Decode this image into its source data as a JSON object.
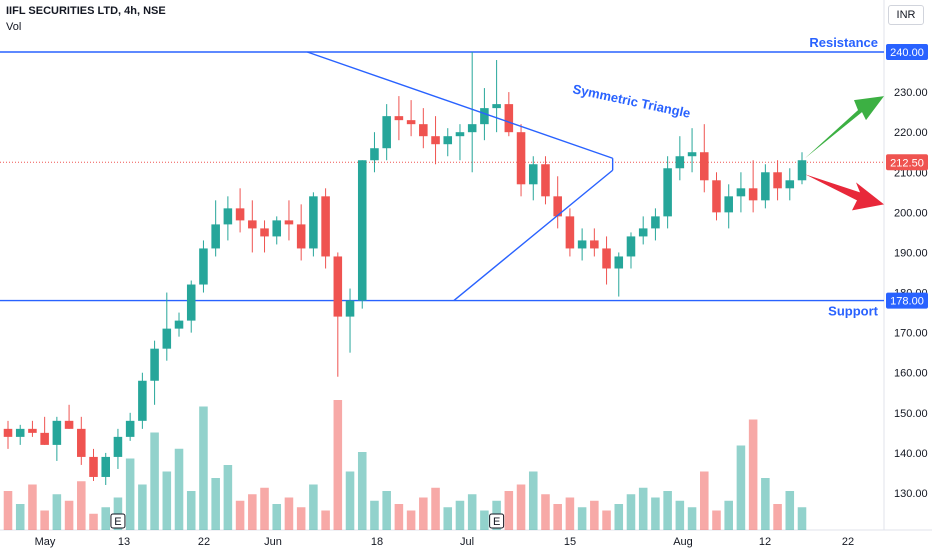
{
  "header": {
    "symbol": "IIFL SECURITIES LTD, 4h, NSE",
    "volume_label": "Vol",
    "currency": "INR"
  },
  "chart_data": {
    "type": "candlestick",
    "price_axis": {
      "ticks": [
        130,
        140,
        150,
        160,
        170,
        180,
        190,
        200,
        210,
        220,
        230
      ],
      "ylim": [
        125,
        252
      ],
      "side": "right"
    },
    "time_axis": {
      "labels": [
        "May",
        "13",
        "22",
        "Jun",
        "18",
        "Jul",
        "15",
        "Aug",
        "12",
        "22"
      ]
    },
    "current_price": {
      "value": 212.5,
      "label": "212.50"
    },
    "lines": {
      "resistance": {
        "value": 240,
        "label": "240.00",
        "text": "Resistance"
      },
      "support": {
        "value": 178,
        "label": "178.00",
        "text": "Support"
      }
    },
    "triangle": {
      "label": "Symmetric Triangle",
      "upper": [
        [
          24.5,
          240
        ],
        [
          49.5,
          213.5
        ]
      ],
      "lower": [
        [
          36.5,
          178
        ],
        [
          49.5,
          210.5
        ]
      ]
    },
    "breakout_arrows": {
      "up_target": 229,
      "down_target": 202
    },
    "earnings_markers": [
      {
        "label": "E",
        "index": 9
      },
      {
        "label": "E",
        "index": 40
      }
    ],
    "ohlc": [
      [
        146,
        148,
        141,
        144
      ],
      [
        144,
        147,
        142,
        146
      ],
      [
        146,
        148,
        144,
        145
      ],
      [
        145,
        149,
        142,
        142
      ],
      [
        142,
        149,
        138,
        148
      ],
      [
        148,
        152,
        146,
        146
      ],
      [
        146,
        149,
        137,
        139
      ],
      [
        139,
        141,
        133,
        134
      ],
      [
        134,
        140,
        132,
        139
      ],
      [
        139,
        146,
        136,
        144
      ],
      [
        144,
        150,
        143,
        148
      ],
      [
        148,
        160,
        146,
        158
      ],
      [
        158,
        168,
        152,
        166
      ],
      [
        166,
        180,
        163,
        171
      ],
      [
        171,
        175,
        169,
        173
      ],
      [
        173,
        183,
        170,
        182
      ],
      [
        182,
        193,
        180,
        191
      ],
      [
        191,
        203,
        189,
        197
      ],
      [
        197,
        204,
        193,
        201
      ],
      [
        201,
        206,
        195,
        198
      ],
      [
        198,
        203,
        190,
        196
      ],
      [
        196,
        198,
        190,
        194
      ],
      [
        194,
        199,
        192,
        198
      ],
      [
        198,
        203,
        193,
        197
      ],
      [
        197,
        202,
        188,
        191
      ],
      [
        191,
        205,
        189,
        204
      ],
      [
        204,
        206,
        186,
        189
      ],
      [
        189,
        190,
        159,
        174
      ],
      [
        174,
        181,
        165,
        178
      ],
      [
        178,
        213,
        176,
        213
      ],
      [
        213,
        220,
        210,
        216
      ],
      [
        216,
        227,
        213,
        224
      ],
      [
        224,
        229,
        218,
        223
      ],
      [
        223,
        228,
        219,
        222
      ],
      [
        222,
        226,
        216,
        219
      ],
      [
        219,
        224,
        212,
        217
      ],
      [
        217,
        221,
        214,
        219
      ],
      [
        219,
        222,
        213,
        220
      ],
      [
        220,
        240,
        210,
        222
      ],
      [
        222,
        231,
        218,
        226
      ],
      [
        226,
        238,
        220,
        227
      ],
      [
        227,
        230,
        219,
        220
      ],
      [
        220,
        222,
        204,
        207
      ],
      [
        207,
        214,
        203,
        212
      ],
      [
        212,
        214,
        202,
        204
      ],
      [
        204,
        209,
        196,
        199
      ],
      [
        199,
        201,
        189,
        191
      ],
      [
        191,
        196,
        188,
        193
      ],
      [
        193,
        196,
        189,
        191
      ],
      [
        191,
        194,
        182,
        186
      ],
      [
        186,
        190,
        179,
        189
      ],
      [
        189,
        195,
        186,
        194
      ],
      [
        194,
        199,
        192,
        196
      ],
      [
        196,
        201,
        193,
        199
      ],
      [
        199,
        214,
        196,
        211
      ],
      [
        211,
        219,
        208,
        214
      ],
      [
        214,
        221,
        210,
        215
      ],
      [
        215,
        222,
        205,
        208
      ],
      [
        208,
        210,
        198,
        200
      ],
      [
        200,
        207,
        196,
        204
      ],
      [
        204,
        210,
        200,
        206
      ],
      [
        206,
        213,
        200,
        203
      ],
      [
        203,
        212,
        201,
        210
      ],
      [
        210,
        213,
        203,
        206
      ],
      [
        206,
        211,
        203,
        208
      ],
      [
        208,
        215,
        207,
        213
      ]
    ],
    "volume": [
      12,
      8,
      14,
      6,
      11,
      9,
      15,
      5,
      7,
      10,
      22,
      14,
      30,
      18,
      25,
      12,
      38,
      16,
      20,
      9,
      11,
      13,
      8,
      10,
      7,
      14,
      6,
      40,
      18,
      24,
      9,
      12,
      8,
      6,
      10,
      13,
      7,
      9,
      11,
      6,
      9,
      12,
      14,
      18,
      11,
      8,
      10,
      7,
      9,
      6,
      8,
      11,
      13,
      10,
      12,
      9,
      7,
      18,
      6,
      9,
      26,
      34,
      16,
      8,
      12,
      7
    ]
  }
}
